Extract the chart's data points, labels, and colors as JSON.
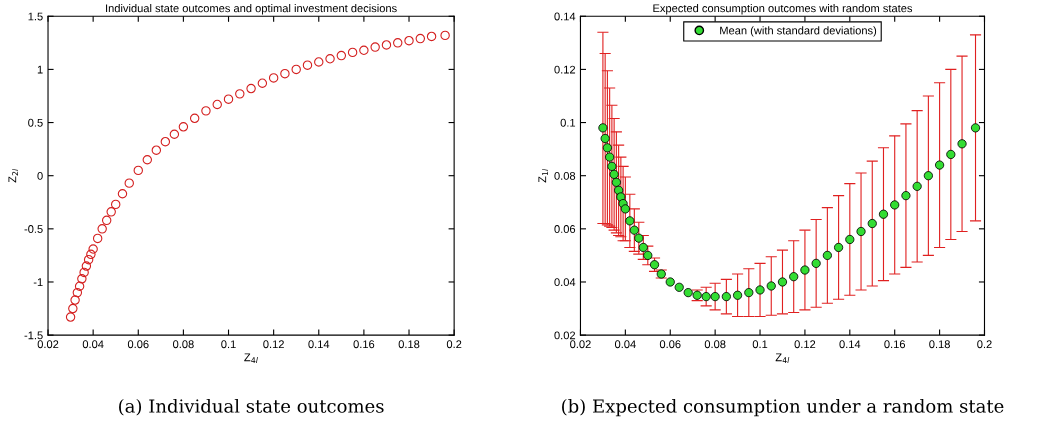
{
  "chart_data": [
    {
      "type": "scatter",
      "title": "Individual state outcomes and optimal investment decisions",
      "xlabel": "Z$_{4l}$",
      "ylabel": "Z$_{2l}$",
      "marker": "circle",
      "grid": false,
      "legend": false,
      "xlim": [
        0.02,
        0.2
      ],
      "xticks": [
        0.02,
        0.04,
        0.06,
        0.08,
        0.1,
        0.12,
        0.14,
        0.16,
        0.18,
        0.2
      ],
      "ylim": [
        -1.5,
        1.5
      ],
      "yticks": [
        -1.5,
        -1,
        -0.5,
        0,
        0.5,
        1,
        1.5
      ],
      "x": [
        0.03,
        0.031,
        0.032,
        0.033,
        0.034,
        0.035,
        0.036,
        0.037,
        0.038,
        0.039,
        0.04,
        0.042,
        0.044,
        0.046,
        0.048,
        0.05,
        0.053,
        0.056,
        0.06,
        0.064,
        0.068,
        0.072,
        0.076,
        0.08,
        0.085,
        0.09,
        0.095,
        0.1,
        0.105,
        0.11,
        0.115,
        0.12,
        0.125,
        0.13,
        0.135,
        0.14,
        0.145,
        0.15,
        0.155,
        0.16,
        0.165,
        0.17,
        0.175,
        0.18,
        0.185,
        0.19,
        0.196
      ],
      "series": [
        {
          "color": "#d42020",
          "values": [
            -1.33,
            -1.25,
            -1.17,
            -1.1,
            -1.04,
            -0.97,
            -0.91,
            -0.85,
            -0.79,
            -0.74,
            -0.69,
            -0.59,
            -0.5,
            -0.42,
            -0.34,
            -0.27,
            -0.17,
            -0.07,
            0.05,
            0.15,
            0.24,
            0.32,
            0.39,
            0.46,
            0.54,
            0.61,
            0.67,
            0.72,
            0.77,
            0.82,
            0.87,
            0.92,
            0.96,
            1.0,
            1.04,
            1.07,
            1.1,
            1.13,
            1.16,
            1.18,
            1.21,
            1.23,
            1.25,
            1.27,
            1.29,
            1.31,
            1.32
          ]
        }
      ],
      "annotations": [
        "(a) Individual state outcomes"
      ]
    },
    {
      "type": "scatter",
      "title": "Expected consumption outcomes with random states",
      "xlabel": "Z$_{4l}$",
      "ylabel": "Z$_{1l}$",
      "marker": "circle",
      "grid": false,
      "legend": "top",
      "xlim": [
        0.02,
        0.2
      ],
      "xticks": [
        0.02,
        0.04,
        0.06,
        0.08,
        0.1,
        0.12,
        0.14,
        0.16,
        0.18,
        0.2
      ],
      "ylim": [
        0.02,
        0.14
      ],
      "yticks": [
        0.02,
        0.04,
        0.06,
        0.08,
        0.1,
        0.12,
        0.14
      ],
      "x": [
        0.03,
        0.031,
        0.032,
        0.033,
        0.034,
        0.035,
        0.036,
        0.037,
        0.038,
        0.039,
        0.04,
        0.042,
        0.044,
        0.046,
        0.048,
        0.05,
        0.053,
        0.056,
        0.06,
        0.064,
        0.068,
        0.072,
        0.076,
        0.08,
        0.085,
        0.09,
        0.095,
        0.1,
        0.105,
        0.11,
        0.115,
        0.12,
        0.125,
        0.13,
        0.135,
        0.14,
        0.145,
        0.15,
        0.155,
        0.16,
        0.165,
        0.17,
        0.175,
        0.18,
        0.185,
        0.19,
        0.196
      ],
      "series": [
        {
          "name": "Mean (with standard deviations)",
          "color": "#33dd33",
          "values": [
            0.098,
            0.094,
            0.0905,
            0.087,
            0.0835,
            0.0805,
            0.0775,
            0.0745,
            0.072,
            0.0695,
            0.0675,
            0.063,
            0.0595,
            0.0565,
            0.053,
            0.05,
            0.0465,
            0.043,
            0.04,
            0.038,
            0.036,
            0.035,
            0.0345,
            0.0345,
            0.0345,
            0.035,
            0.036,
            0.037,
            0.0385,
            0.04,
            0.042,
            0.0445,
            0.047,
            0.05,
            0.053,
            0.056,
            0.059,
            0.062,
            0.0655,
            0.069,
            0.0725,
            0.076,
            0.08,
            0.084,
            0.088,
            0.092,
            0.098
          ],
          "errors": [
            0.036,
            0.032,
            0.029,
            0.026,
            0.023,
            0.021,
            0.019,
            0.017,
            0.015,
            0.014,
            0.012,
            0.01,
            0.008,
            0.006,
            0.0045,
            0.0035,
            0.0025,
            0.0015,
            null,
            null,
            null,
            0.002,
            0.0035,
            0.005,
            0.0065,
            0.008,
            0.009,
            0.01,
            0.011,
            0.012,
            0.0135,
            0.015,
            0.0165,
            0.018,
            0.0195,
            0.021,
            0.022,
            0.0235,
            0.025,
            0.026,
            0.027,
            0.0285,
            0.03,
            0.031,
            0.032,
            0.033,
            0.035
          ]
        }
      ],
      "annotations": [
        "(b) Expected consumption under a random state"
      ]
    }
  ]
}
